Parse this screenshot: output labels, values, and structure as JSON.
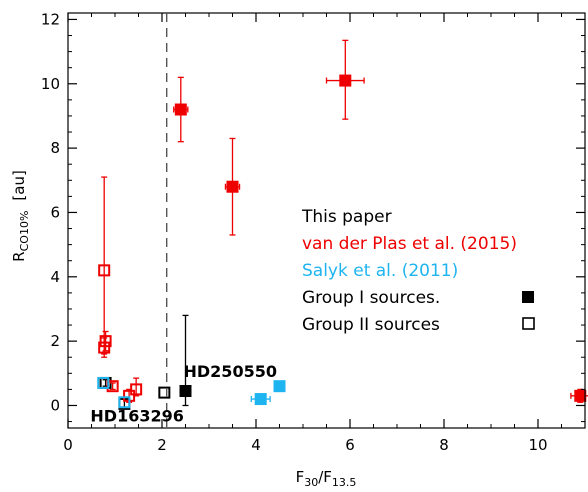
{
  "chart_data": {
    "type": "scatter",
    "xlabel_main": "F",
    "xlabel_sub1": "30",
    "xlabel_sep": "/F",
    "xlabel_sub2": "13.5",
    "ylabel_main": "R",
    "ylabel_sub": "CO10%",
    "ylabel_unit": "[au]",
    "xlim": [
      0,
      11
    ],
    "ylim": [
      -0.7,
      12.2
    ],
    "x_ticks": [
      0,
      2,
      4,
      6,
      8,
      10
    ],
    "y_ticks": [
      0,
      2,
      4,
      6,
      8,
      10,
      12
    ],
    "x_tick_labels": [
      "0",
      "2",
      "4",
      "6",
      "8",
      "10"
    ],
    "y_tick_labels": [
      "0",
      "2",
      "4",
      "6",
      "8",
      "10",
      "12"
    ],
    "dashed_line_x": 2.1,
    "colors": {
      "this_paper": "#000000",
      "van_der_plas": "#ee0000",
      "salyk": "#1eb4f0"
    },
    "legend": {
      "placement": "center-right",
      "this_paper": "This paper",
      "van_der_plas": "van der Plas et al. (2015)",
      "salyk": "Salyk et al. (2011)",
      "group1": "Group I sources.",
      "group2": "Group II sources"
    },
    "annotations": [
      {
        "text": "HD250550",
        "x": 2.5,
        "y": 0.45
      },
      {
        "text": "HD163296",
        "x": 1.2,
        "y": 0.0
      }
    ],
    "series": [
      {
        "source": "this_paper",
        "points": [
          {
            "x": 2.5,
            "y": 0.45,
            "group": "I",
            "yerr_up": 2.35,
            "yerr_down": 0.45,
            "xerr": 0
          },
          {
            "x": 2.05,
            "y": 0.4,
            "group": "II",
            "yerr_up": 0,
            "yerr_down": 0,
            "xerr": 0
          },
          {
            "x": 0.8,
            "y": 0.7,
            "group": "II",
            "yerr_up": 0.1,
            "yerr_down": 0.1,
            "xerr": 0
          },
          {
            "x": 1.2,
            "y": 0.05,
            "group": "II",
            "yerr_up": 0.15,
            "yerr_down": 0.1,
            "xerr": 0
          }
        ]
      },
      {
        "source": "van_der_plas",
        "points": [
          {
            "x": 2.4,
            "y": 9.2,
            "group": "I",
            "yerr_up": 1.0,
            "yerr_down": 1.0,
            "xerr": 0.15
          },
          {
            "x": 5.9,
            "y": 10.1,
            "group": "I",
            "yerr_up": 1.25,
            "yerr_down": 1.2,
            "xerr": 0.4
          },
          {
            "x": 3.5,
            "y": 6.8,
            "group": "I",
            "yerr_up": 1.5,
            "yerr_down": 1.5,
            "xerr": 0.15
          },
          {
            "x": 10.9,
            "y": 0.3,
            "group": "I",
            "yerr_up": 0.2,
            "yerr_down": 0.2,
            "xerr": 0.2
          },
          {
            "x": 0.77,
            "y": 4.2,
            "group": "II",
            "yerr_up": 2.9,
            "yerr_down": 2.6,
            "xerr": 0
          },
          {
            "x": 0.8,
            "y": 2.0,
            "group": "II",
            "yerr_up": 0.3,
            "yerr_down": 0.3,
            "xerr": 0
          },
          {
            "x": 0.77,
            "y": 1.8,
            "group": "II",
            "yerr_up": 0.3,
            "yerr_down": 0.3,
            "xerr": 0
          },
          {
            "x": 0.95,
            "y": 0.6,
            "group": "II",
            "yerr_up": 0.1,
            "yerr_down": 0.1,
            "xerr": 0
          },
          {
            "x": 1.3,
            "y": 0.3,
            "group": "II",
            "yerr_up": 0.2,
            "yerr_down": 0.2,
            "xerr": 0
          },
          {
            "x": 1.45,
            "y": 0.5,
            "group": "II",
            "yerr_up": 0.35,
            "yerr_down": 0.2,
            "xerr": 0
          }
        ]
      },
      {
        "source": "salyk",
        "points": [
          {
            "x": 4.1,
            "y": 0.2,
            "group": "I",
            "yerr_up": 0,
            "yerr_down": 0,
            "xerr": 0.2
          },
          {
            "x": 4.5,
            "y": 0.6,
            "group": "I",
            "yerr_up": 0,
            "yerr_down": 0,
            "xerr": 0
          },
          {
            "x": 0.75,
            "y": 0.7,
            "group": "II",
            "yerr_up": 0,
            "yerr_down": 0,
            "xerr": 0
          },
          {
            "x": 1.2,
            "y": 0.1,
            "group": "II",
            "yerr_up": 0,
            "yerr_down": 0,
            "xerr": 0
          }
        ]
      }
    ]
  }
}
